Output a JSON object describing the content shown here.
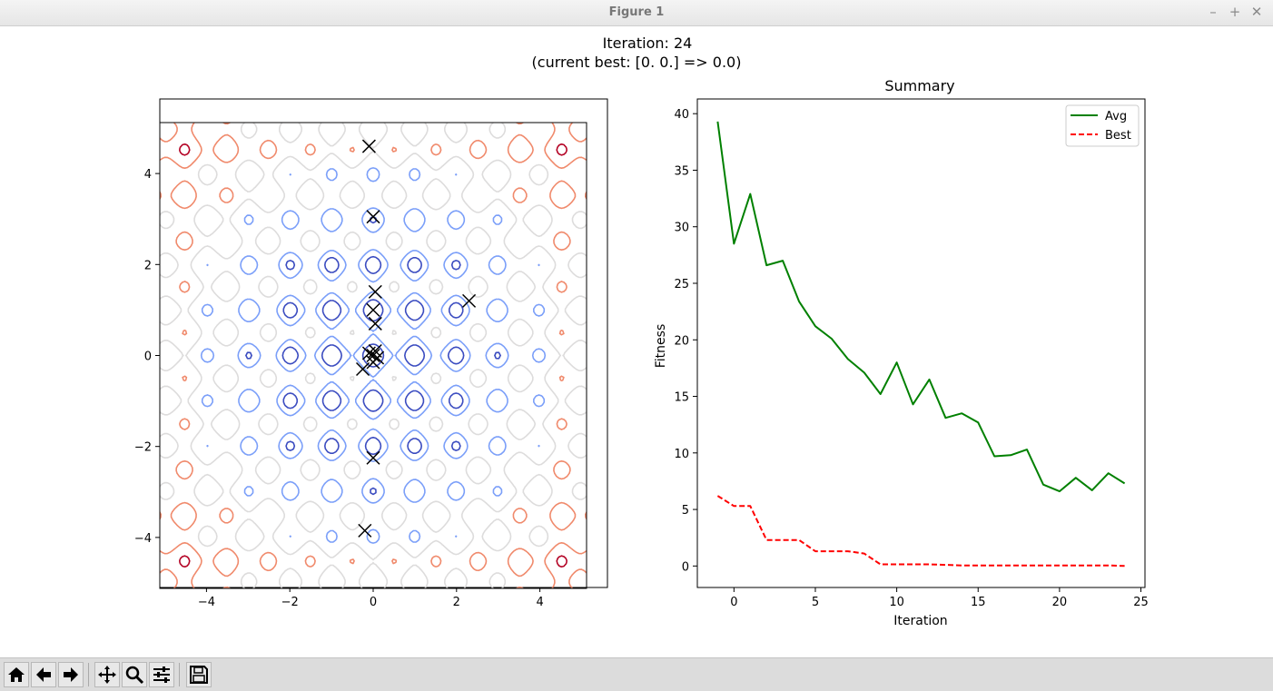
{
  "window": {
    "title": "Figure 1",
    "controls": [
      "–",
      "+",
      "✕"
    ]
  },
  "figure": {
    "suptitle_line1": "Iteration: 24",
    "suptitle_line2": "(current best: [0. 0.] => 0.0)"
  },
  "chart_data": [
    {
      "type": "contour",
      "title": "",
      "xlim": [
        -5.12,
        5.12
      ],
      "ylim": [
        -5.12,
        5.12
      ],
      "xticks": [
        -4,
        -2,
        0,
        2,
        4
      ],
      "yticks": [
        -4,
        -2,
        0,
        2,
        4
      ],
      "colormap": "coolwarm",
      "population_markers": [
        {
          "x": -0.1,
          "y": 4.6
        },
        {
          "x": 0.0,
          "y": 3.05
        },
        {
          "x": 0.05,
          "y": 1.4
        },
        {
          "x": 0.0,
          "y": 1.0
        },
        {
          "x": 0.05,
          "y": 0.7
        },
        {
          "x": 2.3,
          "y": 1.2
        },
        {
          "x": 0.05,
          "y": 0.1
        },
        {
          "x": 0.0,
          "y": 0.0
        },
        {
          "x": 0.1,
          "y": -0.05
        },
        {
          "x": -0.1,
          "y": 0.05
        },
        {
          "x": 0.0,
          "y": -0.15
        },
        {
          "x": -0.25,
          "y": -0.3
        },
        {
          "x": 0.0,
          "y": -2.25
        },
        {
          "x": -0.2,
          "y": -3.85
        }
      ]
    },
    {
      "type": "line",
      "title": "Summary",
      "xlabel": "Iteration",
      "ylabel": "Fitness",
      "xlim": [
        -2.25,
        25.25
      ],
      "ylim": [
        -1.9,
        41.3
      ],
      "xticks": [
        0,
        5,
        10,
        15,
        20,
        25
      ],
      "yticks": [
        0,
        5,
        10,
        15,
        20,
        25,
        30,
        35,
        40
      ],
      "x": [
        -1,
        0,
        1,
        2,
        3,
        4,
        5,
        6,
        7,
        8,
        9,
        10,
        11,
        12,
        13,
        14,
        15,
        16,
        17,
        18,
        19,
        20,
        21,
        22,
        23,
        24
      ],
      "legend_position": "upper right",
      "series": [
        {
          "name": "Avg",
          "color": "#008000",
          "style": "solid",
          "values": [
            39.3,
            28.5,
            32.9,
            26.6,
            27.0,
            23.4,
            21.2,
            20.1,
            18.3,
            17.1,
            15.2,
            18.0,
            14.3,
            16.5,
            13.1,
            13.5,
            12.7,
            9.7,
            9.8,
            10.3,
            7.2,
            6.6,
            7.8,
            6.7,
            8.2,
            7.3
          ]
        },
        {
          "name": "Best",
          "color": "#ff0000",
          "style": "dashed",
          "values": [
            6.2,
            5.3,
            5.3,
            2.3,
            2.3,
            2.3,
            1.3,
            1.3,
            1.3,
            1.1,
            0.15,
            0.15,
            0.15,
            0.15,
            0.1,
            0.05,
            0.05,
            0.05,
            0.05,
            0.05,
            0.05,
            0.05,
            0.05,
            0.05,
            0.05,
            0.0
          ]
        }
      ]
    }
  ],
  "toolbar": {
    "icons": [
      "home-icon",
      "back-arrow-icon",
      "forward-arrow-icon",
      "pan-icon",
      "zoom-icon",
      "configure-subplots-icon",
      "save-icon"
    ]
  }
}
